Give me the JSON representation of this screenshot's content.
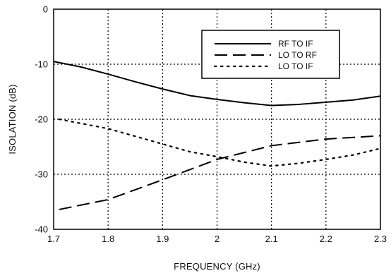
{
  "chart_data": {
    "type": "line",
    "title": "",
    "xlabel": "FREQUENCY (GHz)",
    "ylabel": "ISOLATION (dB)",
    "xlim": [
      1.7,
      2.3
    ],
    "ylim": [
      -40,
      0
    ],
    "x_ticks": [
      1.7,
      1.8,
      1.9,
      2.0,
      2.1,
      2.2,
      2.3
    ],
    "x_tick_labels": [
      "1.7",
      "1.8",
      "1.9",
      "2",
      "2.1",
      "2.2",
      "2.3"
    ],
    "y_ticks": [
      0,
      -10,
      -20,
      -30,
      -40
    ],
    "y_tick_labels": [
      "0",
      "-10",
      "-20",
      "-30",
      "-40"
    ],
    "grid": true,
    "legend_position": "top-right",
    "series": [
      {
        "name": "RF TO IF",
        "style": "solid",
        "color": "#000000",
        "points": [
          [
            1.7,
            -9.5
          ],
          [
            1.75,
            -10.5
          ],
          [
            1.8,
            -11.8
          ],
          [
            1.85,
            -13.2
          ],
          [
            1.9,
            -14.5
          ],
          [
            1.95,
            -15.7
          ],
          [
            2.0,
            -16.4
          ],
          [
            2.05,
            -17.0
          ],
          [
            2.1,
            -17.5
          ],
          [
            2.15,
            -17.3
          ],
          [
            2.2,
            -16.9
          ],
          [
            2.25,
            -16.5
          ],
          [
            2.3,
            -15.8
          ]
        ]
      },
      {
        "name": "LO TO RF",
        "style": "dashed",
        "color": "#000000",
        "points": [
          [
            1.71,
            -36.4
          ],
          [
            1.8,
            -34.6
          ],
          [
            1.9,
            -31.0
          ],
          [
            2.0,
            -27.3
          ],
          [
            2.1,
            -24.8
          ],
          [
            2.2,
            -23.6
          ],
          [
            2.3,
            -23.0
          ]
        ]
      },
      {
        "name": "LO TO IF",
        "style": "dotted",
        "color": "#000000",
        "points": [
          [
            1.71,
            -20.0
          ],
          [
            1.8,
            -21.7
          ],
          [
            1.9,
            -24.5
          ],
          [
            1.95,
            -25.9
          ],
          [
            2.0,
            -26.8
          ],
          [
            2.05,
            -27.8
          ],
          [
            2.1,
            -28.5
          ],
          [
            2.15,
            -28.0
          ],
          [
            2.2,
            -27.3
          ],
          [
            2.25,
            -26.5
          ],
          [
            2.3,
            -25.3
          ]
        ]
      }
    ]
  }
}
